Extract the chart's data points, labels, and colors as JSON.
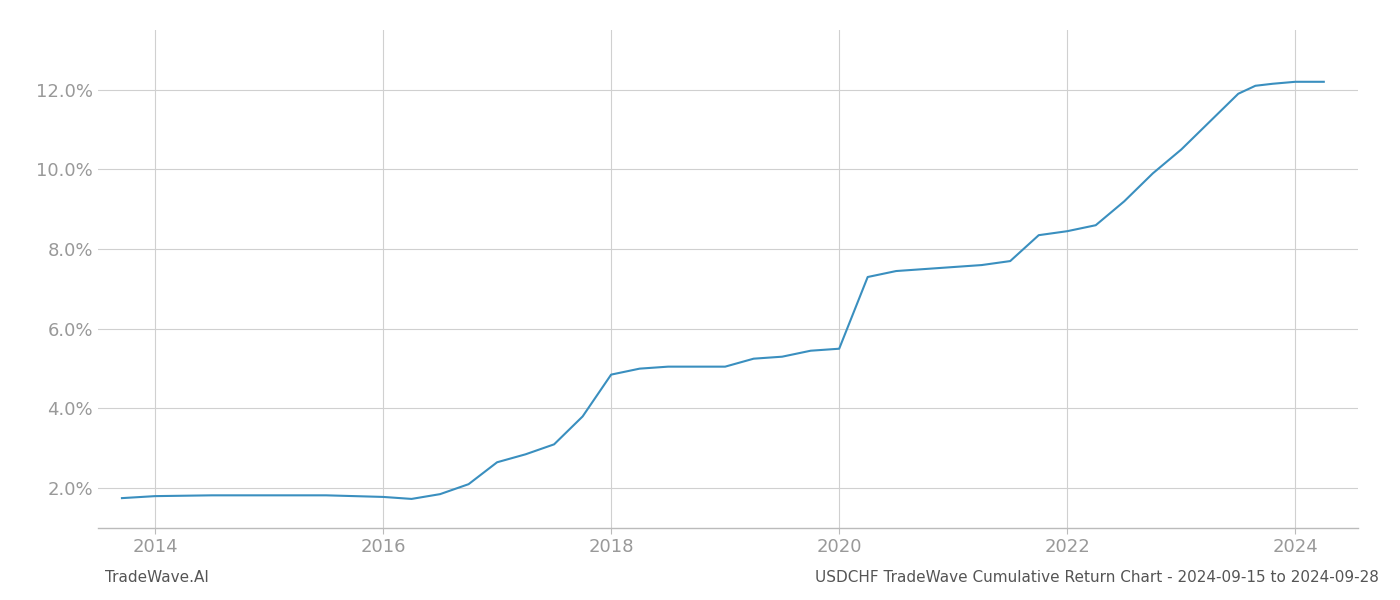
{
  "x_years": [
    2013.71,
    2014.0,
    2014.5,
    2015.0,
    2015.5,
    2016.0,
    2016.25,
    2016.5,
    2016.75,
    2017.0,
    2017.25,
    2017.5,
    2017.75,
    2018.0,
    2018.25,
    2018.5,
    2018.75,
    2019.0,
    2019.25,
    2019.5,
    2019.75,
    2020.0,
    2020.25,
    2020.5,
    2020.75,
    2021.0,
    2021.25,
    2021.5,
    2021.75,
    2022.0,
    2022.25,
    2022.5,
    2022.75,
    2023.0,
    2023.25,
    2023.5,
    2023.65,
    2023.8,
    2024.0,
    2024.25
  ],
  "y_values": [
    1.75,
    1.8,
    1.82,
    1.82,
    1.82,
    1.78,
    1.73,
    1.85,
    2.1,
    2.65,
    2.85,
    3.1,
    3.8,
    4.85,
    5.0,
    5.05,
    5.05,
    5.05,
    5.25,
    5.3,
    5.45,
    5.5,
    7.3,
    7.45,
    7.5,
    7.55,
    7.6,
    7.7,
    8.35,
    8.45,
    8.6,
    9.2,
    9.9,
    10.5,
    11.2,
    11.9,
    12.1,
    12.15,
    12.2,
    12.2
  ],
  "line_color": "#3a8fbf",
  "line_width": 1.5,
  "xlim": [
    2013.5,
    2024.55
  ],
  "ylim": [
    1.0,
    13.5
  ],
  "ytick_values": [
    2.0,
    4.0,
    6.0,
    8.0,
    10.0,
    12.0
  ],
  "xtick_values": [
    2014,
    2016,
    2018,
    2020,
    2022,
    2024
  ],
  "grid_color": "#d0d0d0",
  "background_color": "#ffffff",
  "footer_left": "TradeWave.AI",
  "footer_right": "USDCHF TradeWave Cumulative Return Chart - 2024-09-15 to 2024-09-28",
  "tick_label_color": "#999999",
  "tick_label_fontsize": 13,
  "footer_fontsize": 11,
  "spine_color": "#bbbbbb"
}
